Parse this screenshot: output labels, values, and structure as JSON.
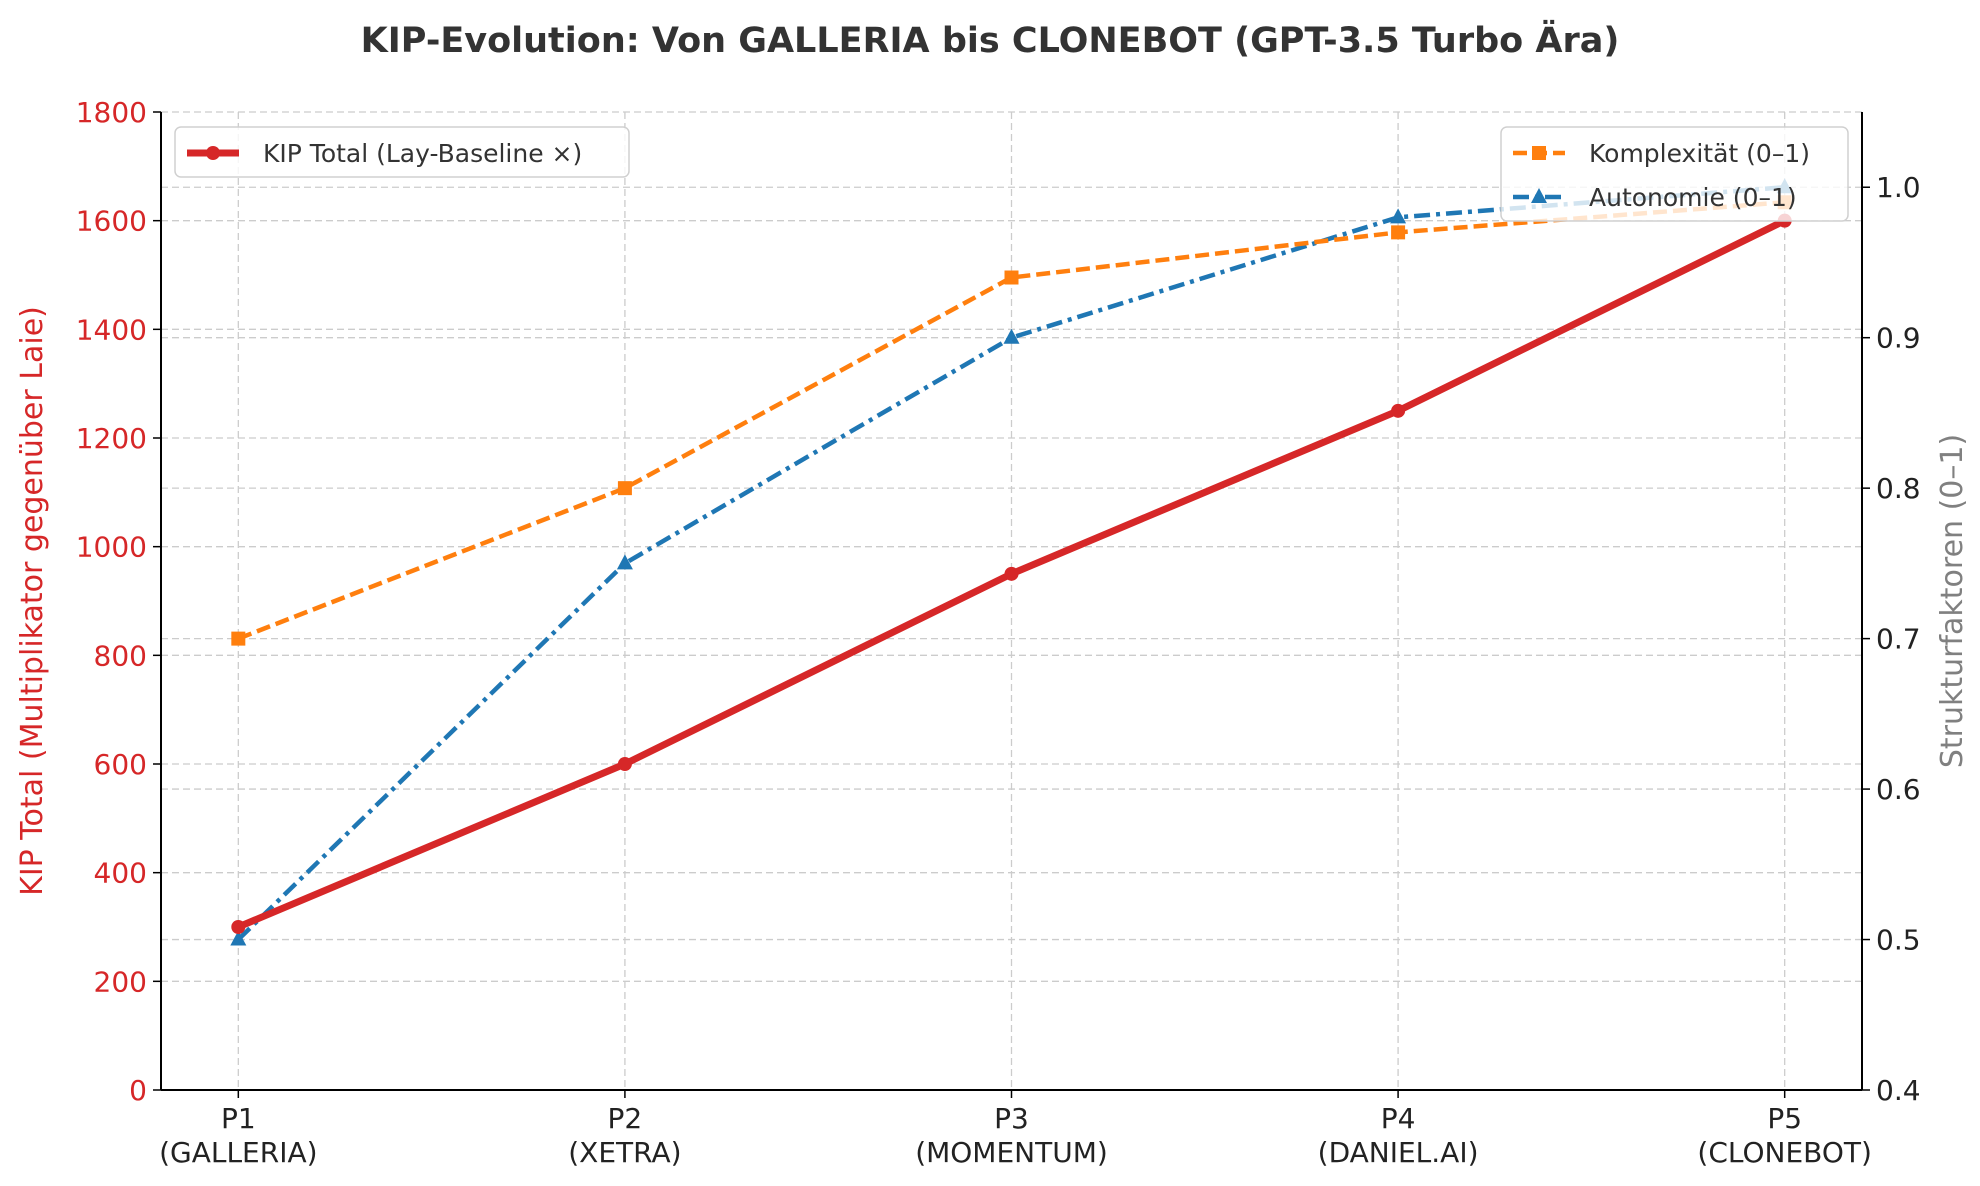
{
  "chart_data": {
    "type": "line",
    "title": "KIP-Evolution: Von GALLERIA bis CLONEBOT (GPT-3.5 Turbo Ära)",
    "categories": [
      "P1\n(GALLERIA)",
      "P2\n(XETRA)",
      "P3\n(MOMENTUM)",
      "P4\n(DANIEL.AI)",
      "P5\n(CLONEBOT)"
    ],
    "ylabel": "KIP Total (Multiplikator gegenüber Laie)",
    "ylabel_right": "Strukturfaktoren (0–1)",
    "ylim": [
      0,
      1800
    ],
    "ylim_right": [
      0.4,
      1.05
    ],
    "yticks": [
      0,
      200,
      400,
      600,
      800,
      1000,
      1200,
      1400,
      1600,
      1800
    ],
    "yticks_right": [
      0.4,
      0.5,
      0.6,
      0.7,
      0.8,
      0.9,
      1.0
    ],
    "grid": true,
    "series": [
      {
        "name": "KIP Total (Lay-Baseline ×)",
        "axis": "left",
        "values": [
          300,
          600,
          950,
          1250,
          1600
        ],
        "color": "#d62728",
        "marker": "circle",
        "linestyle": "solid"
      },
      {
        "name": "Komplexität (0–1)",
        "axis": "right",
        "values": [
          0.7,
          0.8,
          0.94,
          0.97,
          0.99
        ],
        "color": "#ff7f0e",
        "marker": "square",
        "linestyle": "dashed"
      },
      {
        "name": "Autonomie (0–1)",
        "axis": "right",
        "values": [
          0.5,
          0.75,
          0.9,
          0.98,
          1.0
        ],
        "color": "#1f77b4",
        "marker": "triangle",
        "linestyle": "dashdot"
      }
    ],
    "legend_left": "top-left",
    "legend_right": "top-right"
  }
}
